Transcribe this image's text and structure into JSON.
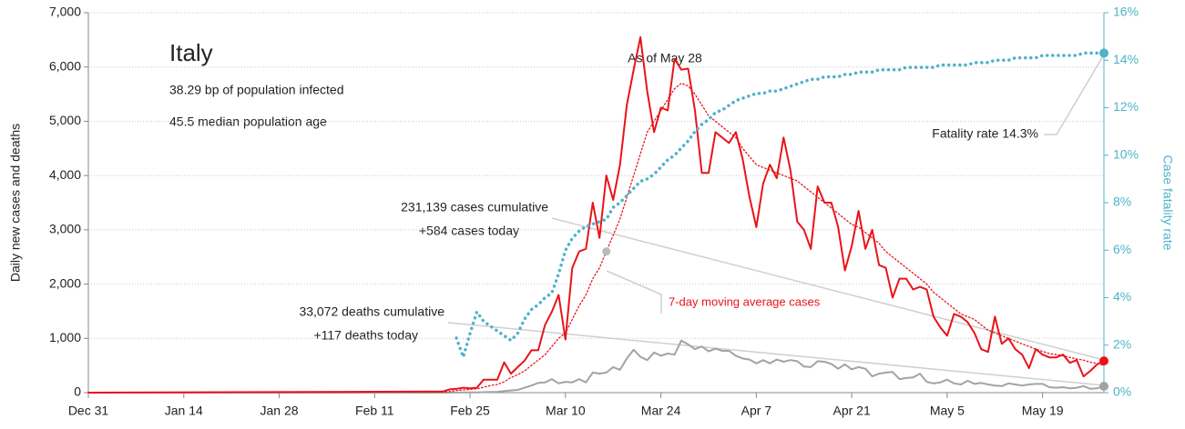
{
  "chart_data": {
    "type": "line",
    "title": "Italy",
    "subtitle": [
      "38.29 bp of population infected",
      "45.5 median population age"
    ],
    "ylabel": "Daily new cases and deaths",
    "y2label": "Case fatality rate",
    "annotations": [
      "As of May 28",
      "231,139 cases cumulative",
      "+584 cases today",
      "33,072 deaths cumulative",
      "+117 deaths today",
      "7-day moving average cases",
      "Fatality rate 14.3%"
    ],
    "x": [
      0,
      52,
      53,
      54,
      55,
      56,
      57,
      58,
      59,
      60,
      61,
      62,
      63,
      64,
      65,
      66,
      67,
      68,
      69,
      70,
      71,
      72,
      73,
      74,
      75,
      76,
      77,
      78,
      79,
      80,
      81,
      82,
      83,
      84,
      85,
      86,
      87,
      88,
      89,
      90,
      91,
      92,
      93,
      94,
      95,
      96,
      97,
      98,
      99,
      100,
      101,
      102,
      103,
      104,
      105,
      106,
      107,
      108,
      109,
      110,
      111,
      112,
      113,
      114,
      115,
      116,
      117,
      118,
      119,
      120,
      121,
      122,
      123,
      124,
      125,
      126,
      127,
      128,
      129,
      130,
      131,
      132,
      133,
      134,
      135,
      136,
      137,
      138,
      139,
      140,
      141,
      142,
      143,
      144,
      145,
      146,
      147,
      148,
      149
    ],
    "xlim": [
      0,
      149
    ],
    "xticks": [
      {
        "value": 0,
        "label": "Dec 31"
      },
      {
        "value": 14,
        "label": "Jan 14"
      },
      {
        "value": 28,
        "label": "Jan 28"
      },
      {
        "value": 42,
        "label": "Feb 11"
      },
      {
        "value": 56,
        "label": "Feb 25"
      },
      {
        "value": 70,
        "label": "Mar 10"
      },
      {
        "value": 84,
        "label": "Mar 24"
      },
      {
        "value": 98,
        "label": "Apr 7"
      },
      {
        "value": 112,
        "label": "Apr 21"
      },
      {
        "value": 126,
        "label": "May 5"
      },
      {
        "value": 140,
        "label": "May 19"
      }
    ],
    "ylim": [
      0,
      7000
    ],
    "yticks": [
      0,
      {
        "value": 1000,
        "label": "1,000"
      },
      {
        "value": 2000,
        "label": "2,000"
      },
      {
        "value": 3000,
        "label": "3,000"
      },
      {
        "value": 4000,
        "label": "4,000"
      },
      {
        "value": 5000,
        "label": "5,000"
      },
      {
        "value": 6000,
        "label": "6,000"
      },
      {
        "value": 7000,
        "label": "7,000"
      }
    ],
    "y2lim": [
      0,
      16
    ],
    "y2ticks": [
      {
        "value": 0,
        "label": "0%"
      },
      {
        "value": 2,
        "label": "2%"
      },
      {
        "value": 4,
        "label": "4%"
      },
      {
        "value": 6,
        "label": "6%"
      },
      {
        "value": 8,
        "label": "8%"
      },
      {
        "value": 10,
        "label": "10%"
      },
      {
        "value": 12,
        "label": "12%"
      },
      {
        "value": 14,
        "label": "14%"
      },
      {
        "value": 16,
        "label": "16%"
      }
    ],
    "grid": true,
    "series": [
      {
        "name": "Daily new cases",
        "color": "#e8141a",
        "style": "solid",
        "values": [
          0,
          20,
          60,
          70,
          90,
          80,
          90,
          240,
          240,
          240,
          560,
          350,
          470,
          590,
          780,
          780,
          1250,
          1490,
          1800,
          980,
          2300,
          2600,
          2650,
          3500,
          2850,
          4000,
          3550,
          4200,
          5300,
          5950,
          6550,
          5550,
          4800,
          5250,
          5200,
          6150,
          5950,
          5970,
          5200,
          4050,
          4050,
          4800,
          4700,
          4600,
          4800,
          4300,
          3600,
          3050,
          3850,
          4200,
          3950,
          4700,
          4100,
          3150,
          3000,
          2650,
          3800,
          3500,
          3500,
          3050,
          2250,
          2700,
          3350,
          2650,
          3000,
          2350,
          2300,
          1750,
          2100,
          2100,
          1900,
          1950,
          1900,
          1400,
          1200,
          1050,
          1450,
          1400,
          1300,
          1100,
          800,
          750,
          1400,
          900,
          1000,
          800,
          700,
          450,
          800,
          700,
          650,
          650,
          700,
          550,
          600,
          300,
          400,
          520,
          584
        ]
      },
      {
        "name": "7-day moving average cases",
        "color": "#e8141a",
        "style": "dotted",
        "values": [
          0,
          10,
          20,
          40,
          50,
          60,
          70,
          100,
          130,
          150,
          200,
          280,
          330,
          400,
          500,
          600,
          700,
          850,
          1000,
          1100,
          1350,
          1600,
          1800,
          2100,
          2300,
          2600,
          2900,
          3200,
          3600,
          4000,
          4400,
          4800,
          5000,
          5200,
          5400,
          5600,
          5700,
          5650,
          5500,
          5300,
          5100,
          5000,
          4900,
          4800,
          4700,
          4500,
          4350,
          4200,
          4150,
          4100,
          4050,
          4000,
          3950,
          3900,
          3800,
          3700,
          3600,
          3500,
          3400,
          3300,
          3200,
          3100,
          3050,
          2950,
          2850,
          2750,
          2600,
          2500,
          2400,
          2300,
          2200,
          2100,
          2000,
          1850,
          1750,
          1650,
          1550,
          1450,
          1400,
          1350,
          1250,
          1150,
          1100,
          1050,
          1000,
          950,
          900,
          850,
          800,
          760,
          720,
          700,
          680,
          650,
          620,
          600,
          560,
          540,
          500
        ]
      },
      {
        "name": "Daily new deaths",
        "color": "#a3a3a3",
        "style": "solid",
        "values": [
          0,
          0,
          0,
          2,
          3,
          4,
          5,
          8,
          12,
          15,
          30,
          40,
          50,
          90,
          130,
          180,
          190,
          250,
          170,
          200,
          190,
          250,
          190,
          370,
          350,
          370,
          470,
          420,
          630,
          790,
          660,
          600,
          740,
          680,
          720,
          700,
          960,
          890,
          800,
          850,
          760,
          810,
          770,
          770,
          680,
          630,
          610,
          540,
          600,
          540,
          610,
          570,
          600,
          580,
          480,
          470,
          580,
          570,
          530,
          440,
          520,
          430,
          470,
          440,
          300,
          350,
          370,
          380,
          250,
          270,
          280,
          350,
          200,
          170,
          190,
          240,
          170,
          150,
          220,
          160,
          180,
          150,
          130,
          120,
          170,
          150,
          130,
          150,
          160,
          160,
          100,
          90,
          100,
          80,
          90,
          120,
          70,
          80,
          117
        ]
      },
      {
        "name": "Case fatality rate",
        "color": "#4fb3c8",
        "style": "dotted",
        "axis": "y2",
        "values": [
          null,
          null,
          null,
          2.3,
          1.5,
          2.5,
          3.4,
          3.0,
          2.8,
          2.6,
          2.4,
          2.2,
          2.5,
          3.1,
          3.5,
          3.7,
          4.0,
          4.2,
          5.0,
          6.0,
          6.5,
          6.8,
          7.0,
          7.1,
          7.2,
          7.3,
          7.8,
          8.0,
          8.3,
          8.6,
          8.9,
          9.0,
          9.2,
          9.5,
          9.8,
          10.0,
          10.3,
          10.6,
          11.0,
          11.3,
          11.5,
          11.8,
          11.9,
          12.1,
          12.3,
          12.4,
          12.5,
          12.6,
          12.6,
          12.7,
          12.7,
          12.8,
          12.9,
          13.0,
          13.1,
          13.2,
          13.2,
          13.3,
          13.3,
          13.3,
          13.4,
          13.4,
          13.5,
          13.5,
          13.5,
          13.6,
          13.6,
          13.6,
          13.6,
          13.7,
          13.7,
          13.7,
          13.7,
          13.7,
          13.8,
          13.8,
          13.8,
          13.8,
          13.8,
          13.9,
          13.9,
          13.9,
          14.0,
          14.0,
          14.0,
          14.1,
          14.1,
          14.1,
          14.1,
          14.2,
          14.2,
          14.2,
          14.2,
          14.2,
          14.2,
          14.3,
          14.3,
          14.3,
          14.3
        ]
      }
    ]
  }
}
